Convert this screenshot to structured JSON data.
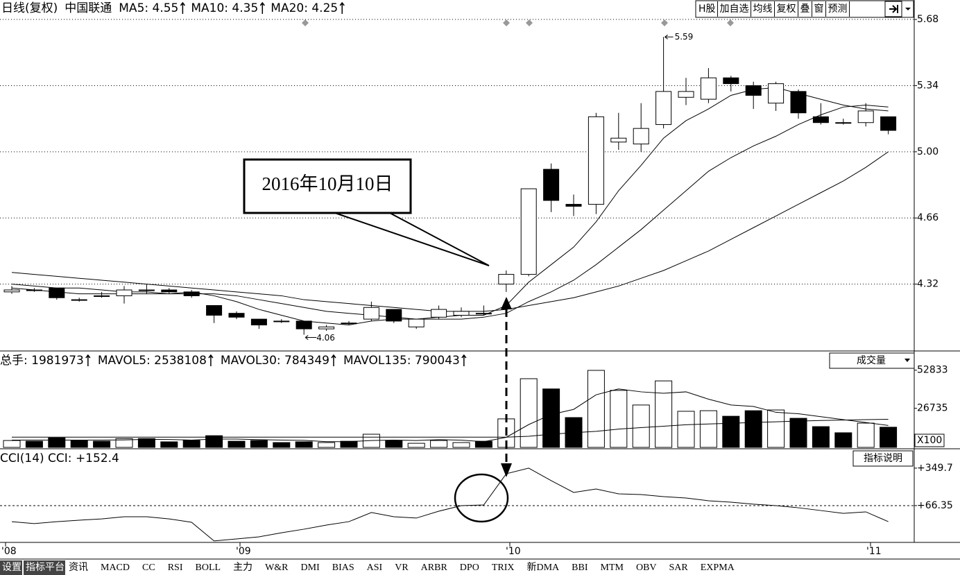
{
  "header": {
    "items": [
      "日线(复权)",
      "中国联通",
      "MA5: 4.55",
      "MA10: 4.35",
      "MA20: 4.25"
    ]
  },
  "buttons": [
    "H股",
    "加自选",
    "均线",
    "复权",
    "叠",
    "窗",
    "预测"
  ],
  "price": {
    "type": "candlestick",
    "open": [
      4.28,
      4.29,
      4.3,
      4.24,
      4.26,
      4.26,
      4.29,
      4.29,
      4.28,
      4.21,
      4.17,
      4.14,
      4.13,
      4.13,
      4.09,
      4.12,
      4.14,
      4.19,
      4.1,
      4.15,
      4.16,
      4.17,
      4.32,
      4.37,
      4.91,
      4.73,
      4.73,
      5.05,
      5.04,
      5.14,
      5.28,
      5.27,
      5.38,
      5.34,
      5.25,
      5.31,
      5.18,
      5.15,
      5.15,
      5.18
    ],
    "high": [
      4.31,
      4.3,
      4.3,
      4.25,
      4.28,
      4.31,
      4.32,
      4.3,
      4.29,
      4.21,
      4.18,
      4.14,
      4.14,
      4.13,
      4.11,
      4.13,
      4.23,
      4.19,
      4.14,
      4.21,
      4.2,
      4.21,
      4.39,
      4.81,
      4.94,
      4.78,
      5.2,
      5.2,
      5.25,
      5.59,
      5.38,
      5.43,
      5.39,
      5.36,
      5.36,
      5.32,
      5.25,
      5.17,
      5.25,
      5.18
    ],
    "low": [
      4.27,
      4.28,
      4.24,
      4.23,
      4.25,
      4.22,
      4.27,
      4.27,
      4.25,
      4.12,
      4.14,
      4.09,
      4.12,
      4.06,
      4.08,
      4.11,
      4.13,
      4.12,
      4.09,
      4.14,
      4.15,
      4.16,
      4.28,
      4.36,
      4.69,
      4.67,
      4.68,
      5.01,
      5.0,
      5.12,
      5.24,
      5.25,
      5.31,
      5.22,
      5.21,
      5.17,
      5.14,
      5.14,
      5.13,
      5.09
    ],
    "close": [
      4.29,
      4.29,
      4.25,
      4.24,
      4.26,
      4.29,
      4.29,
      4.28,
      4.26,
      4.16,
      4.15,
      4.11,
      4.13,
      4.09,
      4.1,
      4.12,
      4.2,
      4.13,
      4.14,
      4.19,
      4.18,
      4.17,
      4.37,
      4.81,
      4.75,
      4.72,
      5.18,
      5.07,
      5.12,
      5.31,
      5.31,
      5.38,
      5.35,
      5.29,
      5.35,
      5.2,
      5.15,
      5.15,
      5.21,
      5.11
    ],
    "ma5": [
      4.3,
      4.29,
      4.28,
      4.27,
      4.27,
      4.27,
      4.27,
      4.27,
      4.28,
      4.26,
      4.23,
      4.19,
      4.16,
      4.13,
      4.12,
      4.11,
      4.13,
      4.14,
      4.14,
      4.15,
      4.16,
      4.16,
      4.21,
      4.33,
      4.42,
      4.51,
      4.64,
      4.8,
      4.93,
      5.07,
      5.16,
      5.22,
      5.29,
      5.32,
      5.33,
      5.3,
      5.27,
      5.24,
      5.22,
      5.21
    ],
    "ma10": [
      4.32,
      4.31,
      4.3,
      4.3,
      4.29,
      4.28,
      4.28,
      4.27,
      4.27,
      4.27,
      4.26,
      4.24,
      4.22,
      4.2,
      4.18,
      4.17,
      4.16,
      4.15,
      4.14,
      4.14,
      4.14,
      4.15,
      4.17,
      4.23,
      4.28,
      4.34,
      4.42,
      4.51,
      4.6,
      4.7,
      4.8,
      4.9,
      4.97,
      5.03,
      5.08,
      5.14,
      5.19,
      5.23,
      5.24,
      5.23
    ],
    "ma20": [
      4.38,
      4.37,
      4.36,
      4.35,
      4.34,
      4.33,
      4.32,
      4.31,
      4.3,
      4.29,
      4.28,
      4.27,
      4.26,
      4.24,
      4.23,
      4.22,
      4.21,
      4.2,
      4.19,
      4.18,
      4.18,
      4.18,
      4.19,
      4.21,
      4.23,
      4.25,
      4.28,
      4.31,
      4.35,
      4.39,
      4.44,
      4.49,
      4.55,
      4.61,
      4.67,
      4.73,
      4.79,
      4.85,
      4.92,
      5.0
    ],
    "ylim": [
      3.98,
      5.78
    ],
    "yticks": [
      5.68,
      5.34,
      {
        "value": 5,
        "label": "5.00"
      },
      4.66,
      4.32
    ],
    "grid": true,
    "annotations": {
      "callout": "2016年10月10日",
      "high_label": "5.59",
      "low_label": "4.06"
    }
  },
  "volume": {
    "legend": [
      "总手: 1981973",
      "MAVOL5: 2538108",
      "MAVOL30: 784349",
      "MAVOL135: 790043"
    ],
    "dropdown": "成交量",
    "values": [
      4700,
      4200,
      6500,
      4700,
      4200,
      6000,
      6000,
      3800,
      4700,
      8000,
      4200,
      4700,
      3300,
      3800,
      3300,
      4200,
      9000,
      4700,
      2800,
      4700,
      3300,
      4200,
      19500,
      47000,
      40000,
      20400,
      52700,
      39000,
      29000,
      45500,
      24700,
      25100,
      21300,
      25100,
      25600,
      19900,
      14200,
      10000,
      16600,
      13800
    ],
    "mavol5": [
      5000,
      5000,
      5000,
      5000,
      5000,
      5100,
      5500,
      5400,
      5000,
      5700,
      5700,
      5300,
      5000,
      4800,
      3900,
      3900,
      4700,
      5000,
      4700,
      5300,
      4900,
      3900,
      6900,
      15600,
      22500,
      26000,
      36000,
      40000,
      38000,
      37000,
      38000,
      33000,
      29000,
      28000,
      24000,
      23000,
      21000,
      19000,
      17000,
      15000
    ],
    "mavol30": [
      7000,
      7000,
      7000,
      7000,
      7000,
      7000,
      7000,
      7000,
      7000,
      7000,
      7000,
      7000,
      7000,
      7000,
      7000,
      7000,
      7000,
      7000,
      7000,
      7000,
      7000,
      7000,
      7000,
      7600,
      9000,
      10000,
      11000,
      12500,
      13500,
      14500,
      15500,
      16000,
      16500,
      17000,
      17500,
      18000,
      18400,
      18700,
      19000,
      19200
    ],
    "ylim": [
      0,
      65500
    ],
    "yticks": [
      52833,
      26735
    ],
    "unit": "X100"
  },
  "cci": {
    "legend": "CCI(14) CCI: +152.4",
    "button": "指标说明",
    "values": [
      -55,
      -70,
      -55,
      -44,
      -34,
      -18,
      -18,
      -34,
      -60,
      -201,
      -186,
      -170,
      -139,
      -112,
      -81,
      -55,
      14,
      -18,
      -28,
      24,
      66,
      71,
      307,
      350,
      255,
      166,
      192,
      155,
      150,
      134,
      124,
      103,
      92,
      77,
      66,
      50,
      29,
      8,
      19,
      -55
    ],
    "ylim": [
      -212,
      491
    ],
    "yticks": [
      {
        "value": 349.7,
        "label": "+349.7"
      },
      {
        "value": 66.35,
        "label": "+66.35"
      }
    ]
  },
  "xaxis": [
    "'08",
    "'09",
    "'10",
    "'11"
  ],
  "tabs": [
    "设置",
    "指标平台",
    "资讯",
    "MACD",
    "CC",
    "RSI",
    "BOLL",
    "主力",
    "W&R",
    "DMI",
    "BIAS",
    "ASI",
    "VR",
    "ARBR",
    "DPO",
    "TRIX",
    "新DMA",
    "BBI",
    "MTM",
    "OBV",
    "SAR",
    "EXPMA"
  ]
}
